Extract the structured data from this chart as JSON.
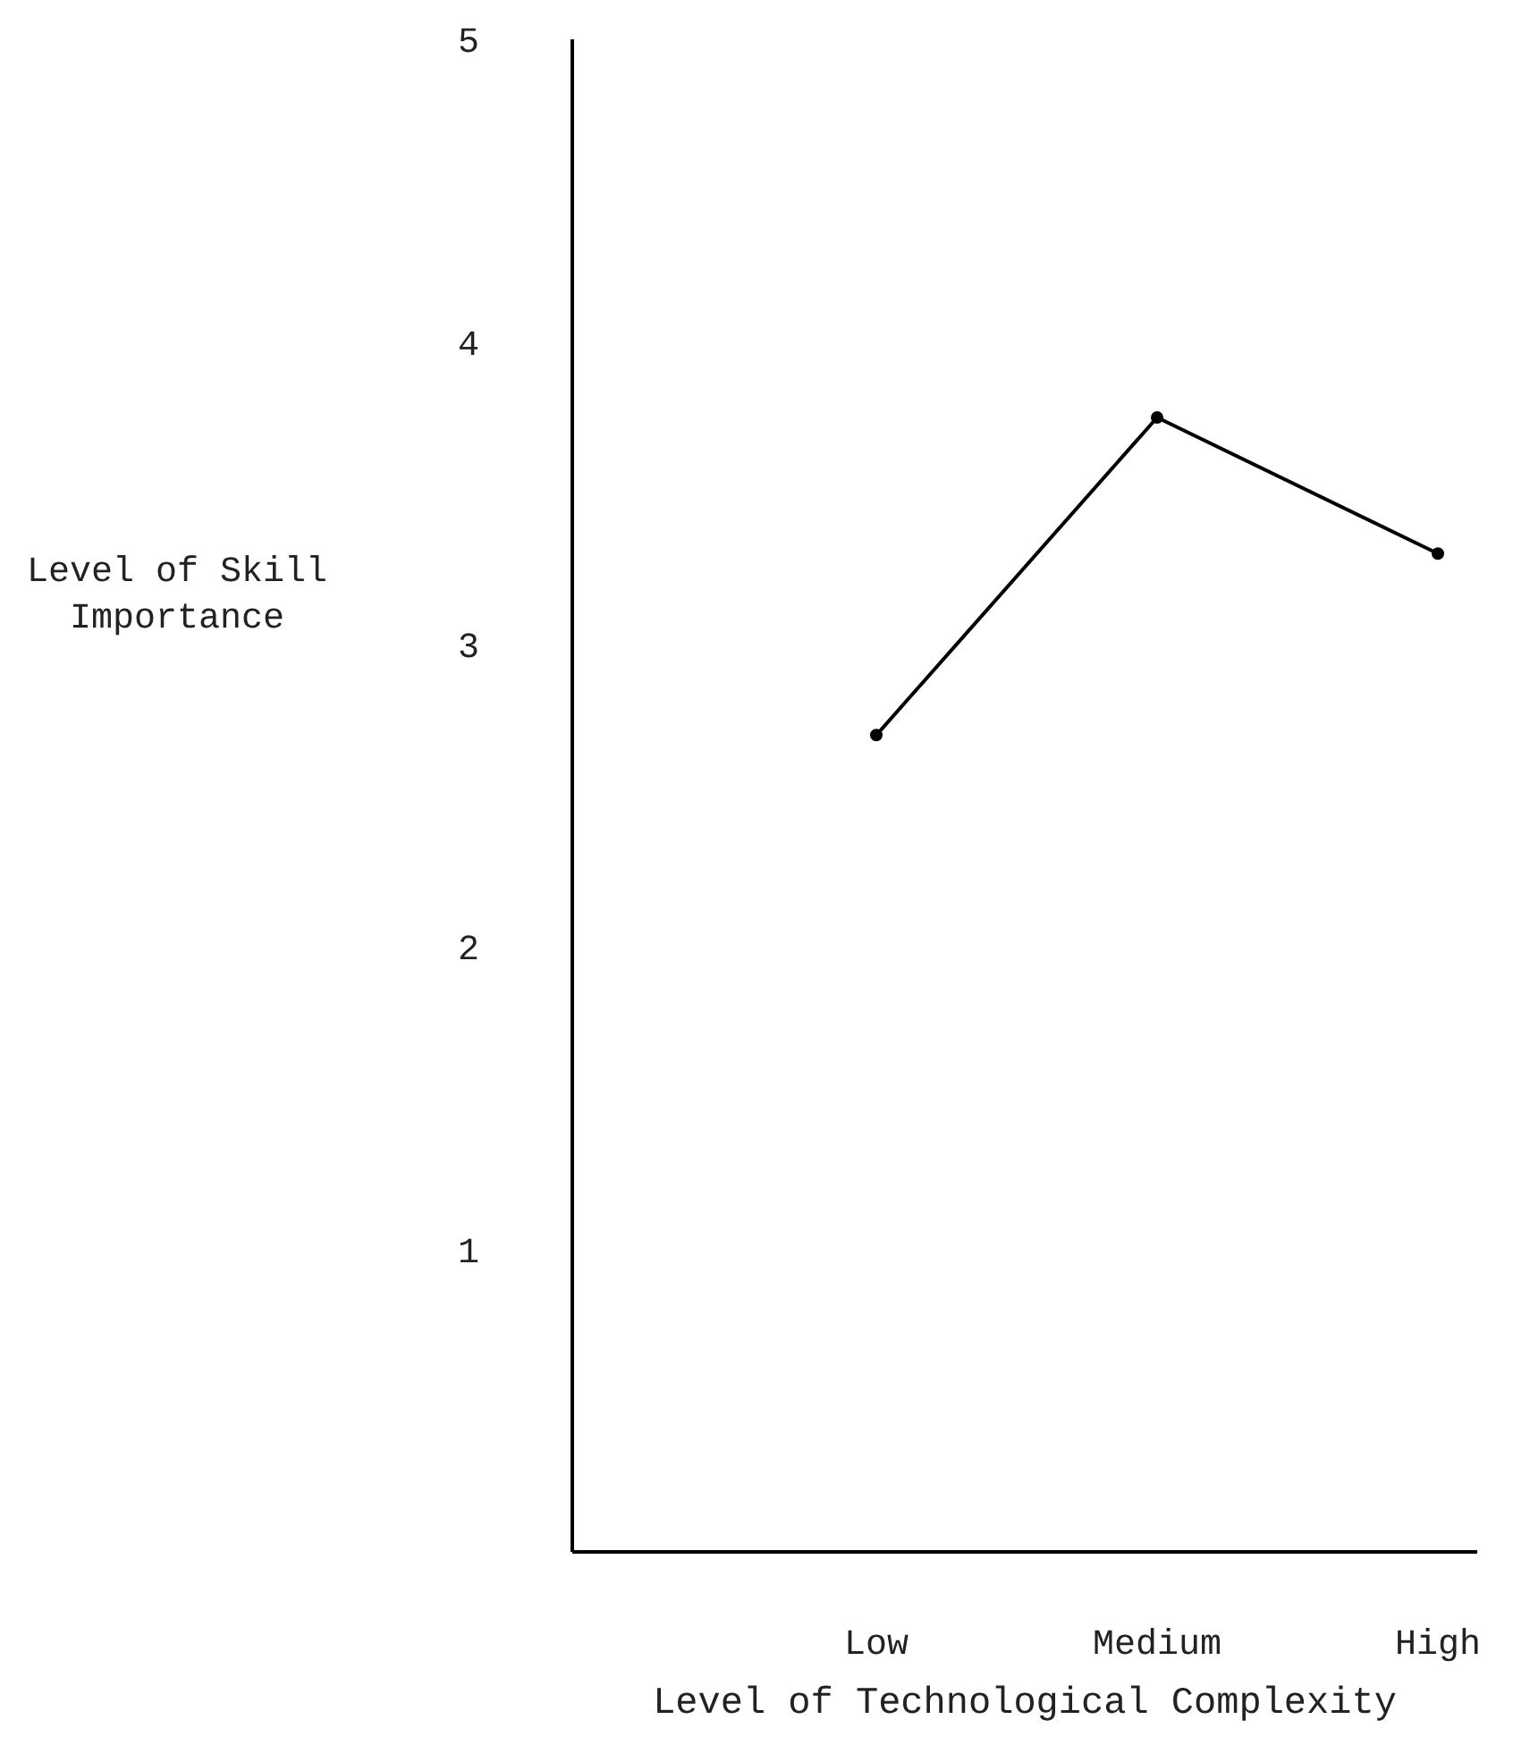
{
  "chart_data": {
    "type": "line",
    "xlabel": "Level of Technological Complexity",
    "ylabel": "Level of Skill Importance",
    "categories": [
      "Low",
      "Medium",
      "High"
    ],
    "series": [
      {
        "color": "#000000",
        "values": [
          2.7,
          3.75,
          3.3
        ]
      }
    ],
    "ylim": [
      0,
      5
    ],
    "yticks": [
      1,
      2,
      3,
      4,
      5
    ],
    "grid": false,
    "legend": false,
    "marker": "circle",
    "line_style": "solid"
  }
}
